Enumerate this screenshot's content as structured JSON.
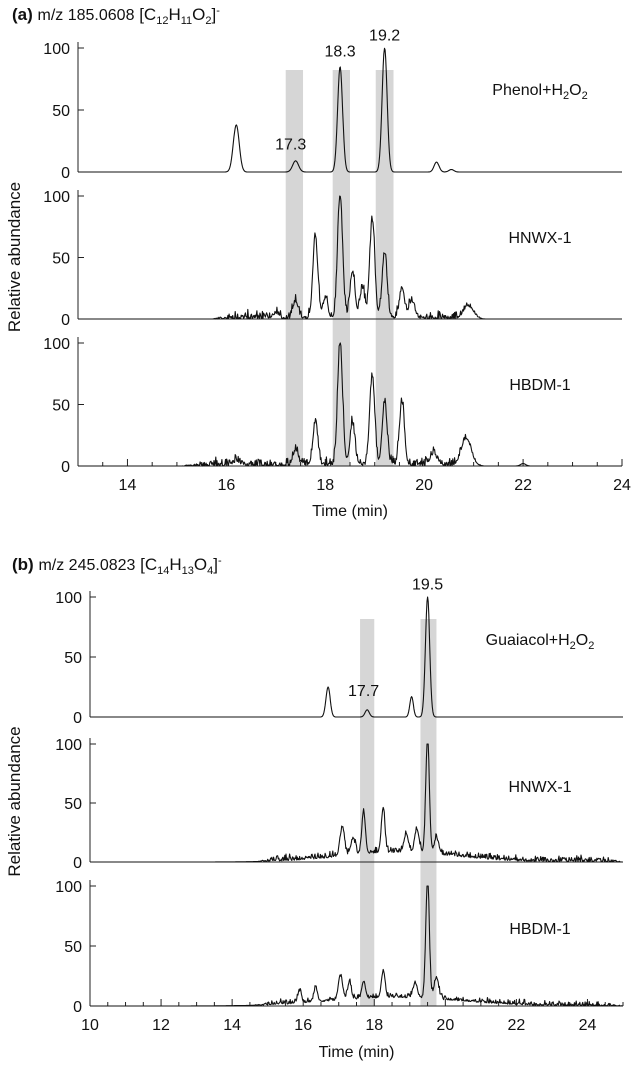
{
  "chart_data": [
    {
      "type": "line",
      "panel_label": "(a)",
      "mz_label": "m/z 185.0608",
      "formula": {
        "base": "C",
        "n1": "12",
        "h": "H",
        "n2": "11",
        "o": "O",
        "n3": "2",
        "charge": "-"
      },
      "xlabel": "Time (min)",
      "ylabel": "Relative abundance",
      "xlim": [
        13,
        24
      ],
      "xticks": [
        14,
        16,
        18,
        20,
        22,
        24
      ],
      "ylim": [
        0,
        100
      ],
      "yticks": [
        0,
        50,
        100
      ],
      "highlight_bands": [
        [
          17.2,
          17.55
        ],
        [
          18.15,
          18.5
        ],
        [
          19.02,
          19.38
        ]
      ],
      "series": [
        {
          "name": "Phenol+H2O2",
          "label_parts": [
            "Phenol+H",
            "2",
            "O",
            "2"
          ],
          "peaks": [
            [
              16.2,
              38,
              0.06
            ],
            [
              17.4,
              9,
              0.06
            ],
            [
              18.3,
              85,
              0.05
            ],
            [
              19.2,
              100,
              0.05
            ],
            [
              20.25,
              8,
              0.05
            ],
            [
              20.55,
              2,
              0.05
            ]
          ],
          "annotations": [
            {
              "text": "17.3",
              "x": 17.3,
              "y": 15
            },
            {
              "text": "18.3",
              "x": 18.3,
              "y": 90
            },
            {
              "text": "19.2",
              "x": 19.2,
              "y": 103
            }
          ]
        },
        {
          "name": "HNWX-1",
          "label_parts": [
            "HNWX-1"
          ],
          "noise": {
            "from": 15.7,
            "to": 21.2,
            "amp": 5
          },
          "peaks": [
            [
              17.0,
              4,
              0.06
            ],
            [
              17.4,
              14,
              0.05
            ],
            [
              17.8,
              64,
              0.05
            ],
            [
              18.0,
              16,
              0.05
            ],
            [
              18.3,
              100,
              0.05
            ],
            [
              18.55,
              38,
              0.05
            ],
            [
              18.75,
              24,
              0.05
            ],
            [
              18.95,
              80,
              0.05
            ],
            [
              19.2,
              53,
              0.05
            ],
            [
              19.55,
              25,
              0.05
            ],
            [
              19.75,
              14,
              0.06
            ],
            [
              20.9,
              10,
              0.1
            ]
          ]
        },
        {
          "name": "HBDM-1",
          "label_parts": [
            "HBDM-1"
          ],
          "noise": {
            "from": 15.1,
            "to": 21.2,
            "amp": 5
          },
          "peaks": [
            [
              16.2,
              3,
              0.08
            ],
            [
              17.4,
              12,
              0.05
            ],
            [
              17.8,
              35,
              0.05
            ],
            [
              18.3,
              100,
              0.05
            ],
            [
              18.55,
              34,
              0.05
            ],
            [
              18.95,
              72,
              0.05
            ],
            [
              19.2,
              50,
              0.05
            ],
            [
              19.55,
              52,
              0.05
            ],
            [
              20.2,
              8,
              0.08
            ],
            [
              20.85,
              22,
              0.1
            ],
            [
              22.0,
              2,
              0.05
            ]
          ]
        }
      ]
    },
    {
      "type": "line",
      "panel_label": "(b)",
      "mz_label": "m/z 245.0823",
      "formula": {
        "base": "C",
        "n1": "14",
        "h": "H",
        "n2": "13",
        "o": "O",
        "n3": "4",
        "charge": "-"
      },
      "xlabel": "Time (min)",
      "ylabel": "Relative abundance",
      "xlim": [
        10,
        25
      ],
      "xticks": [
        10,
        12,
        14,
        16,
        18,
        20,
        22,
        24
      ],
      "ylim": [
        0,
        100
      ],
      "yticks": [
        0,
        50,
        100
      ],
      "highlight_bands": [
        [
          17.6,
          18.0
        ],
        [
          19.3,
          19.75
        ]
      ],
      "series": [
        {
          "name": "Guaiacol+H2O2",
          "label_parts": [
            "Guaiacol+H",
            "2",
            "O",
            "2"
          ],
          "peaks": [
            [
              16.7,
              25,
              0.06
            ],
            [
              17.8,
              6,
              0.06
            ],
            [
              19.05,
              17,
              0.05
            ],
            [
              19.5,
              100,
              0.06
            ]
          ],
          "annotations": [
            {
              "text": "17.7",
              "x": 17.7,
              "y": 14
            },
            {
              "text": "19.5",
              "x": 19.5,
              "y": 103
            }
          ]
        },
        {
          "name": "HNWX-1",
          "label_parts": [
            "HNWX-1"
          ],
          "noise": {
            "from": 14.7,
            "to": 25.0,
            "amp": 4
          },
          "hump": {
            "center": 18.7,
            "height": 8,
            "width": 1.6
          },
          "peaks": [
            [
              17.1,
              24,
              0.06
            ],
            [
              17.4,
              14,
              0.06
            ],
            [
              17.7,
              36,
              0.05
            ],
            [
              18.25,
              38,
              0.05
            ],
            [
              18.9,
              16,
              0.06
            ],
            [
              19.2,
              20,
              0.06
            ],
            [
              19.5,
              98,
              0.05
            ],
            [
              19.75,
              14,
              0.06
            ]
          ]
        },
        {
          "name": "HBDM-1",
          "label_parts": [
            "HBDM-1"
          ],
          "noise": {
            "from": 14.6,
            "to": 25.0,
            "amp": 3
          },
          "hump": {
            "center": 18.6,
            "height": 7,
            "width": 1.8
          },
          "peaks": [
            [
              15.9,
              10,
              0.05
            ],
            [
              16.35,
              12,
              0.05
            ],
            [
              17.05,
              20,
              0.06
            ],
            [
              17.3,
              14,
              0.05
            ],
            [
              17.7,
              14,
              0.05
            ],
            [
              18.25,
              22,
              0.05
            ],
            [
              19.15,
              12,
              0.06
            ],
            [
              19.5,
              100,
              0.05
            ],
            [
              19.75,
              18,
              0.06
            ]
          ]
        }
      ]
    }
  ]
}
